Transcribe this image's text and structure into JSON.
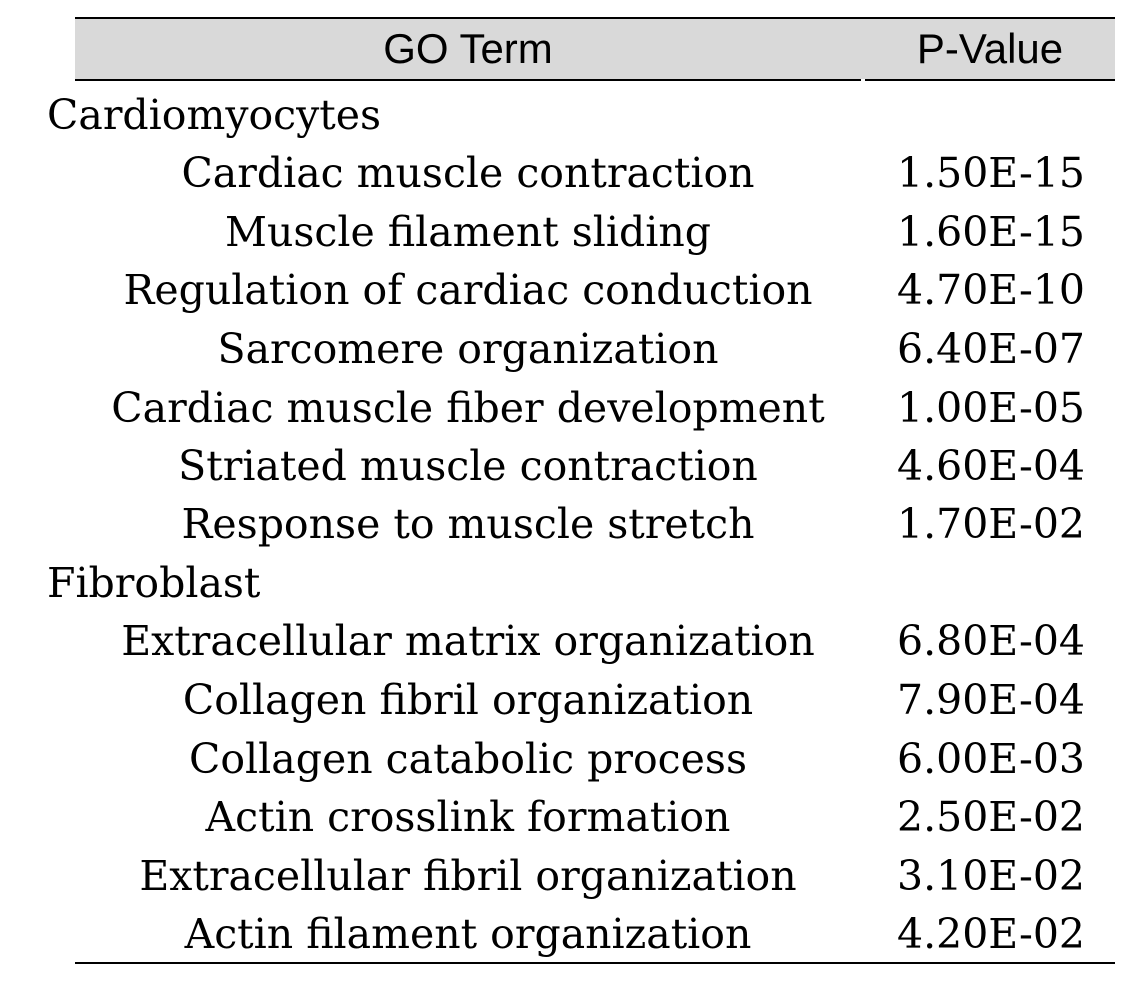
{
  "table": {
    "headers": {
      "term": "GO Term",
      "pvalue": "P-Value"
    },
    "groups": [
      {
        "label": "Cardiomyocytes",
        "rows": [
          {
            "term": "Cardiac muscle contraction",
            "pvalue": "1.50E-15"
          },
          {
            "term": "Muscle filament sliding",
            "pvalue": "1.60E-15"
          },
          {
            "term": "Regulation of cardiac conduction",
            "pvalue": "4.70E-10"
          },
          {
            "term": "Sarcomere organization",
            "pvalue": "6.40E-07"
          },
          {
            "term": "Cardiac muscle fiber development",
            "pvalue": "1.00E-05"
          },
          {
            "term": "Striated muscle contraction",
            "pvalue": "4.60E-04"
          },
          {
            "term": "Response to muscle stretch",
            "pvalue": "1.70E-02"
          }
        ]
      },
      {
        "label": "Fibroblast",
        "rows": [
          {
            "term": "Extracellular matrix organization",
            "pvalue": "6.80E-04"
          },
          {
            "term": "Collagen fibril organization",
            "pvalue": "7.90E-04"
          },
          {
            "term": "Collagen catabolic process",
            "pvalue": "6.00E-03"
          },
          {
            "term": "Actin crosslink formation",
            "pvalue": "2.50E-02"
          },
          {
            "term": "Extracellular fibril organization",
            "pvalue": "3.10E-02"
          },
          {
            "term": "Actin filament organization",
            "pvalue": "4.20E-02"
          }
        ]
      }
    ]
  }
}
